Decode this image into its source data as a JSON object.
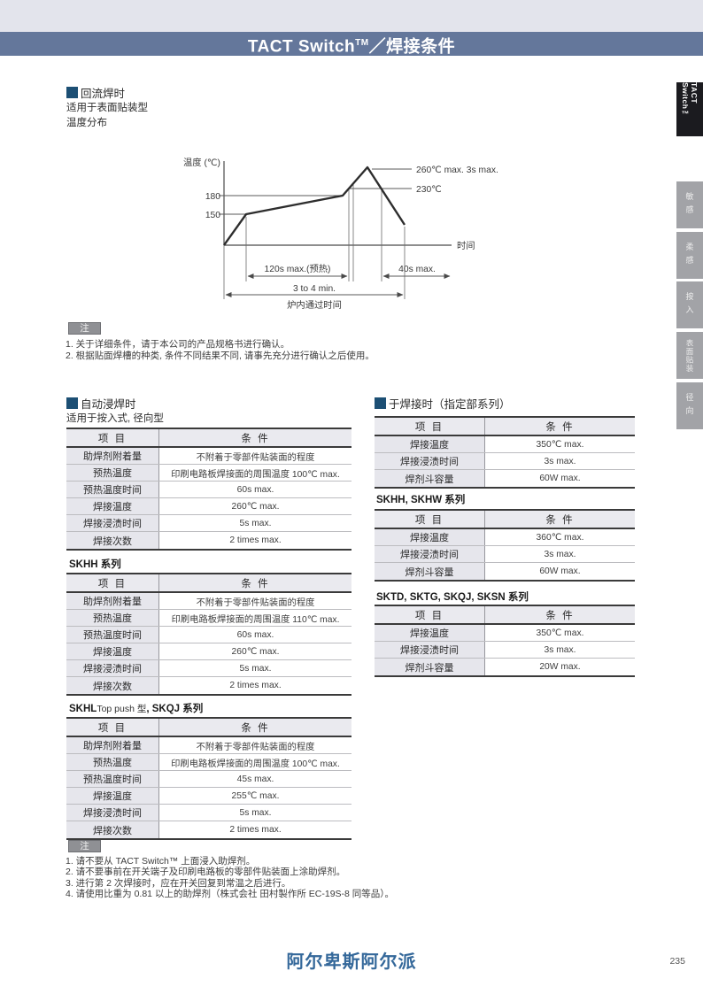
{
  "header": {
    "title_main": "TACT Switch",
    "title_sup": "TM",
    "title_rest": "／焊接条件"
  },
  "sidebar": {
    "active_label": "TACT Switch™",
    "tabs": [
      "敏感",
      "柔感",
      "按入",
      "表面贴装",
      "径向"
    ]
  },
  "reflow": {
    "heading": "回流焊时",
    "line1": "适用于表面贴装型",
    "line2": "温度分布"
  },
  "chart": {
    "ylabel": "温度 (℃)",
    "xlabel": "时间",
    "tick_180": "180",
    "tick_150": "150",
    "peak_label": "260℃ max. 3s max.",
    "threshold_label": "230℃",
    "preheat_label": "120s max.(预热)",
    "above_label": "40s max.",
    "total_label": "3 to 4 min.",
    "total_sub": "炉内通过时间"
  },
  "chart_data": {
    "type": "line",
    "title": "温度分布 (回流焊温度曲线)",
    "xlabel": "时间",
    "ylabel": "温度 (℃)",
    "yticks": [
      150,
      180
    ],
    "grid": false,
    "profile": [
      {
        "phase": "start",
        "temp_c": 25
      },
      {
        "phase": "preheat_start",
        "temp_c": 150
      },
      {
        "phase": "preheat_end",
        "temp_c": 180,
        "preheat_time": "120s max.(预热)"
      },
      {
        "phase": "peak",
        "temp_c": 260,
        "peak_time": "3s max."
      },
      {
        "phase": "cooling_end",
        "temp_c": 130
      }
    ],
    "annotations": [
      {
        "label": "260℃ max. 3s max.",
        "temp_c": 260,
        "time_s_max": 3
      },
      {
        "label": "230℃",
        "temp_c": 230,
        "time_above": "40s max."
      },
      {
        "label": "120s max.(预热)",
        "time_s_max": 120
      },
      {
        "label": "40s max.",
        "time_s_max": 40
      },
      {
        "label": "3 to 4 min.",
        "meaning": "炉内通过时间"
      }
    ]
  },
  "note_top": {
    "label": "注",
    "lines": [
      "1. 关于详细条件，请于本公司的产品规格书进行确认。",
      "2. 根据贴面焊槽的种类, 条件不同结果不同, 请事先充分进行确认之后使用。"
    ]
  },
  "dip": {
    "heading": "自动浸焊时",
    "subtitle": "适用于按入式, 径向型"
  },
  "hand": {
    "heading": "于焊接时（指定部系列）"
  },
  "tables": {
    "columns": [
      "项 目",
      "条 件"
    ],
    "dip_main": {
      "rows": [
        [
          "助焊剂附着量",
          "不附着于零部件贴装面的程度"
        ],
        [
          "预热温度",
          "印刷电路板焊接面的周围温度 100℃ max."
        ],
        [
          "预热温度时间",
          "60s max."
        ],
        [
          "焊接温度",
          "260℃ max."
        ],
        [
          "焊接浸渍时间",
          "5s max."
        ],
        [
          "焊接次数",
          "2 times max."
        ]
      ]
    },
    "skhh": {
      "title": "SKHH 系列",
      "rows": [
        [
          "助焊剂附着量",
          "不附着于零部件贴装面的程度"
        ],
        [
          "预热温度",
          "印刷电路板焊接面的周围温度 110℃ max."
        ],
        [
          "预热温度时间",
          "60s max."
        ],
        [
          "焊接温度",
          "260℃ max."
        ],
        [
          "焊接浸渍时间",
          "5s max."
        ],
        [
          "焊接次数",
          "2 times max."
        ]
      ]
    },
    "skhl": {
      "title_b1": "SKHL",
      "title_n": "Top push 型",
      "title_b2": ", SKQJ 系列",
      "rows": [
        [
          "助焊剂附着量",
          "不附着于零部件贴装面的程度"
        ],
        [
          "预热温度",
          "印刷电路板焊接面的周围温度 100℃ max."
        ],
        [
          "预热温度时间",
          "45s max."
        ],
        [
          "焊接温度",
          "255℃ max."
        ],
        [
          "焊接浸渍时间",
          "5s max."
        ],
        [
          "焊接次数",
          "2 times max."
        ]
      ]
    },
    "hand_main": {
      "rows": [
        [
          "焊接温度",
          "350℃ max."
        ],
        [
          "焊接浸渍时间",
          "3s max."
        ],
        [
          "焊剂斗容量",
          "60W max."
        ]
      ]
    },
    "skhh_skhw": {
      "title": "SKHH, SKHW 系列",
      "rows": [
        [
          "焊接温度",
          "360℃ max."
        ],
        [
          "焊接浸渍时间",
          "3s max."
        ],
        [
          "焊剂斗容量",
          "60W max."
        ]
      ]
    },
    "sktd": {
      "title": "SKTD, SKTG, SKQJ, SKSN 系列",
      "rows": [
        [
          "焊接温度",
          "350℃ max."
        ],
        [
          "焊接浸渍时间",
          "3s max."
        ],
        [
          "焊剂斗容量",
          "20W max."
        ]
      ]
    }
  },
  "note_bottom": {
    "label": "注",
    "lines": [
      "1. 请不要从 TACT Switch™ 上面浸入助焊剂。",
      "2. 请不要事前在开关端子及印刷电路板的零部件贴装面上涂助焊剂。",
      "3. 进行第 2 次焊接时，应在开关回复到常温之后进行。",
      "4. 请使用比重为 0.81 以上的助焊剂（株式会社 田村製作所 EC-19S-8 同等品）。"
    ]
  },
  "footer": {
    "brand": "阿尔卑斯阿尔派",
    "page": "235"
  },
  "colors": {
    "header_bar": "#64779b",
    "top_strip": "#e3e4ec",
    "accent_square": "#1c4f74",
    "brand_blue": "#34689a",
    "tab_black": "#1b1b1f",
    "tab_gray": "#a2a3a7"
  }
}
